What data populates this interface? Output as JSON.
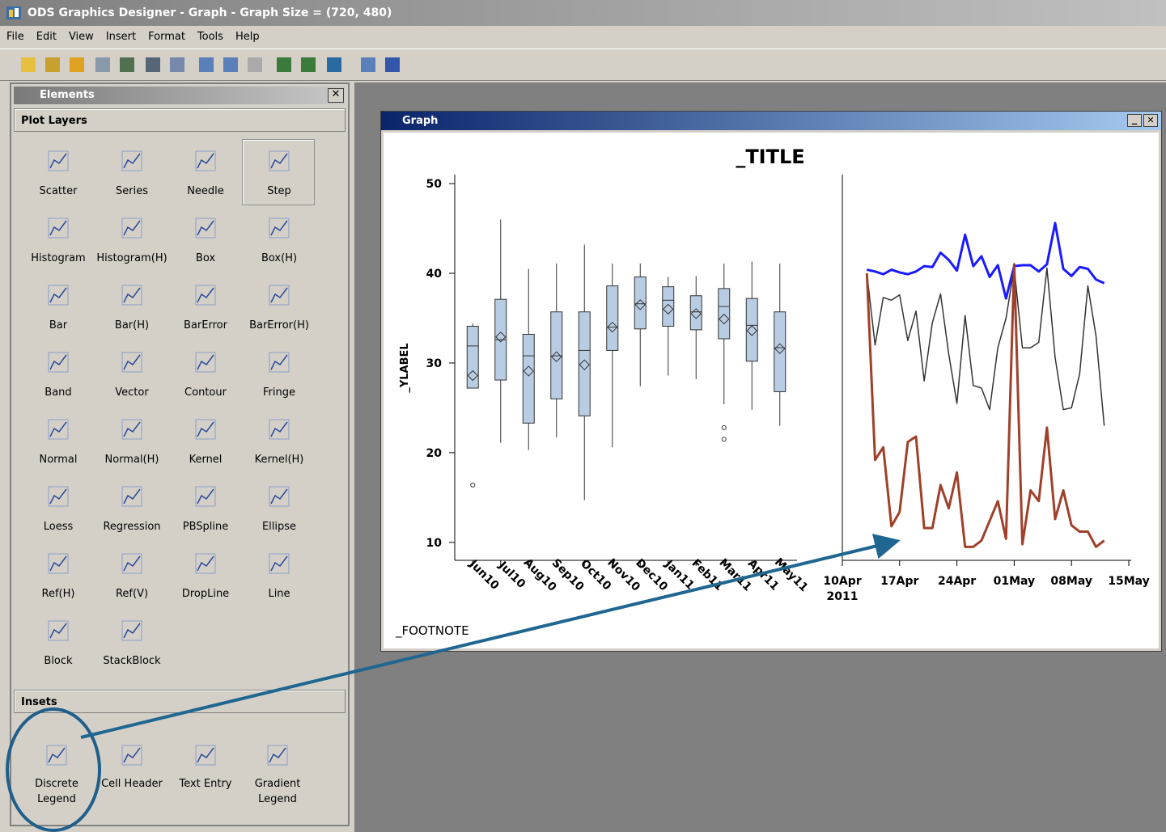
{
  "window": {
    "title": "ODS Graphics Designer - Graph - Graph Size = (720, 480)"
  },
  "menu": [
    "File",
    "Edit",
    "View",
    "Insert",
    "Format",
    "Tools",
    "Help"
  ],
  "elements_panel": {
    "title": "Elements",
    "plot_layers": {
      "title": "Plot Layers",
      "items": [
        "Scatter",
        "Series",
        "Needle",
        "Step",
        "Histogram",
        "Histogram(H)",
        "Box",
        "Box(H)",
        "Bar",
        "Bar(H)",
        "BarError",
        "BarError(H)",
        "Band",
        "Vector",
        "Contour",
        "Fringe",
        "Normal",
        "Normal(H)",
        "Kernel",
        "Kernel(H)",
        "Loess",
        "Regression",
        "PBSpline",
        "Ellipse",
        "Ref(H)",
        "Ref(V)",
        "DropLine",
        "Line",
        "Block",
        "StackBlock"
      ]
    },
    "insets": {
      "title": "Insets",
      "items": [
        "Discrete\nLegend",
        "Cell Header",
        "Text Entry",
        "Gradient\nLegend"
      ]
    }
  },
  "graph_window": {
    "title": "Graph"
  },
  "chart_data": [
    {
      "type": "box",
      "title": "_TITLE",
      "y_label": "_YLABEL",
      "footnote": "_FOOTNOTE",
      "categories": [
        "Jun10",
        "Jul10",
        "Aug10",
        "Sep10",
        "Oct10",
        "Nov10",
        "Dec10",
        "Jan11",
        "Feb11",
        "Mar11",
        "Apr11",
        "May11"
      ],
      "min": [
        27.2,
        21.1,
        20.3,
        21.7,
        14.7,
        20.6,
        27.4,
        28.6,
        28.2,
        25.4,
        24.8,
        23.0
      ],
      "q1": [
        27.2,
        28.1,
        23.3,
        26.0,
        24.1,
        31.4,
        33.8,
        34.1,
        33.7,
        32.7,
        30.2,
        26.8
      ],
      "median": [
        31.9,
        32.6,
        30.8,
        30.8,
        31.4,
        34.0,
        36.6,
        37.0,
        35.7,
        36.3,
        34.2,
        31.7
      ],
      "q3": [
        34.1,
        37.1,
        33.2,
        35.7,
        35.7,
        38.6,
        39.6,
        38.5,
        37.5,
        38.3,
        37.2,
        35.7
      ],
      "max": [
        34.4,
        46.0,
        40.5,
        41.1,
        43.2,
        41.1,
        41.1,
        39.6,
        39.7,
        41.1,
        41.3,
        41.1
      ],
      "mean": [
        28.6,
        32.9,
        29.1,
        30.7,
        29.8,
        34.0,
        36.5,
        36.0,
        35.5,
        34.9,
        33.6,
        31.6
      ],
      "outliers": [
        [
          16.4
        ],
        [],
        [],
        [],
        [],
        [],
        [],
        [],
        [],
        [
          22.8,
          21.5
        ],
        [],
        []
      ],
      "color": "#b8cce4",
      "ylim": [
        8,
        51
      ],
      "yticks": [
        10,
        20,
        30,
        40,
        50
      ]
    },
    {
      "type": "line",
      "x": [
        "2011-04-13",
        "2011-04-14",
        "2011-04-15",
        "2011-04-16",
        "2011-04-17",
        "2011-04-18",
        "2011-04-19",
        "2011-04-20",
        "2011-04-21",
        "2011-04-22",
        "2011-04-23",
        "2011-04-24",
        "2011-04-25",
        "2011-04-26",
        "2011-04-27",
        "2011-04-28",
        "2011-04-29",
        "2011-04-30",
        "2011-05-01",
        "2011-05-02",
        "2011-05-03",
        "2011-05-04",
        "2011-05-05",
        "2011-05-06",
        "2011-05-07",
        "2011-05-08",
        "2011-05-09",
        "2011-05-10",
        "2011-05-11",
        "2011-05-12"
      ],
      "series": [
        {
          "color": "#1a1aff",
          "width": 3,
          "values": [
            40.4,
            40.2,
            39.9,
            40.4,
            40.1,
            39.9,
            40.2,
            40.8,
            40.7,
            42.3,
            41.5,
            40.3,
            44.3,
            40.8,
            41.9,
            39.6,
            40.9,
            37.2,
            40.8,
            40.9,
            40.9,
            40.2,
            41.0,
            45.6,
            40.5,
            39.7,
            40.7,
            40.5,
            39.3,
            38.9
          ]
        },
        {
          "color": "#333333",
          "width": 1.5,
          "values": [
            40,
            32,
            37.3,
            37,
            37.6,
            32.5,
            35.8,
            28,
            34.5,
            37.7,
            31,
            25.5,
            35.3,
            27.5,
            27.2,
            24.8,
            31.7,
            35,
            40.6,
            31.7,
            31.7,
            32.3,
            40.6,
            30.6,
            24.8,
            25,
            28.8,
            38.6,
            33,
            23
          ]
        },
        {
          "color": "#a0402a",
          "width": 3,
          "values": [
            40,
            19.2,
            20.6,
            11.8,
            13.4,
            21.2,
            21.8,
            11.6,
            11.6,
            16.4,
            13.8,
            17.8,
            9.5,
            9.5,
            10.2,
            12.4,
            14.6,
            10.4,
            41,
            9.8,
            15.8,
            14.6,
            22.8,
            12.6,
            15.8,
            11.9,
            11.2,
            11.2,
            9.5,
            10.2
          ]
        }
      ],
      "xlim": [
        "2011-04-10",
        "2011-05-15"
      ],
      "xticks": [
        {
          "value": "2011-04-10",
          "label": "10Apr"
        },
        {
          "value": "2011-04-17",
          "label": "17Apr"
        },
        {
          "value": "2011-04-24",
          "label": "24Apr"
        },
        {
          "value": "2011-05-01",
          "label": "01May"
        },
        {
          "value": "2011-05-08",
          "label": "08May"
        },
        {
          "value": "2011-05-15",
          "label": "15May"
        }
      ],
      "x_year_label": "2011",
      "ylim": [
        8,
        51
      ]
    }
  ]
}
